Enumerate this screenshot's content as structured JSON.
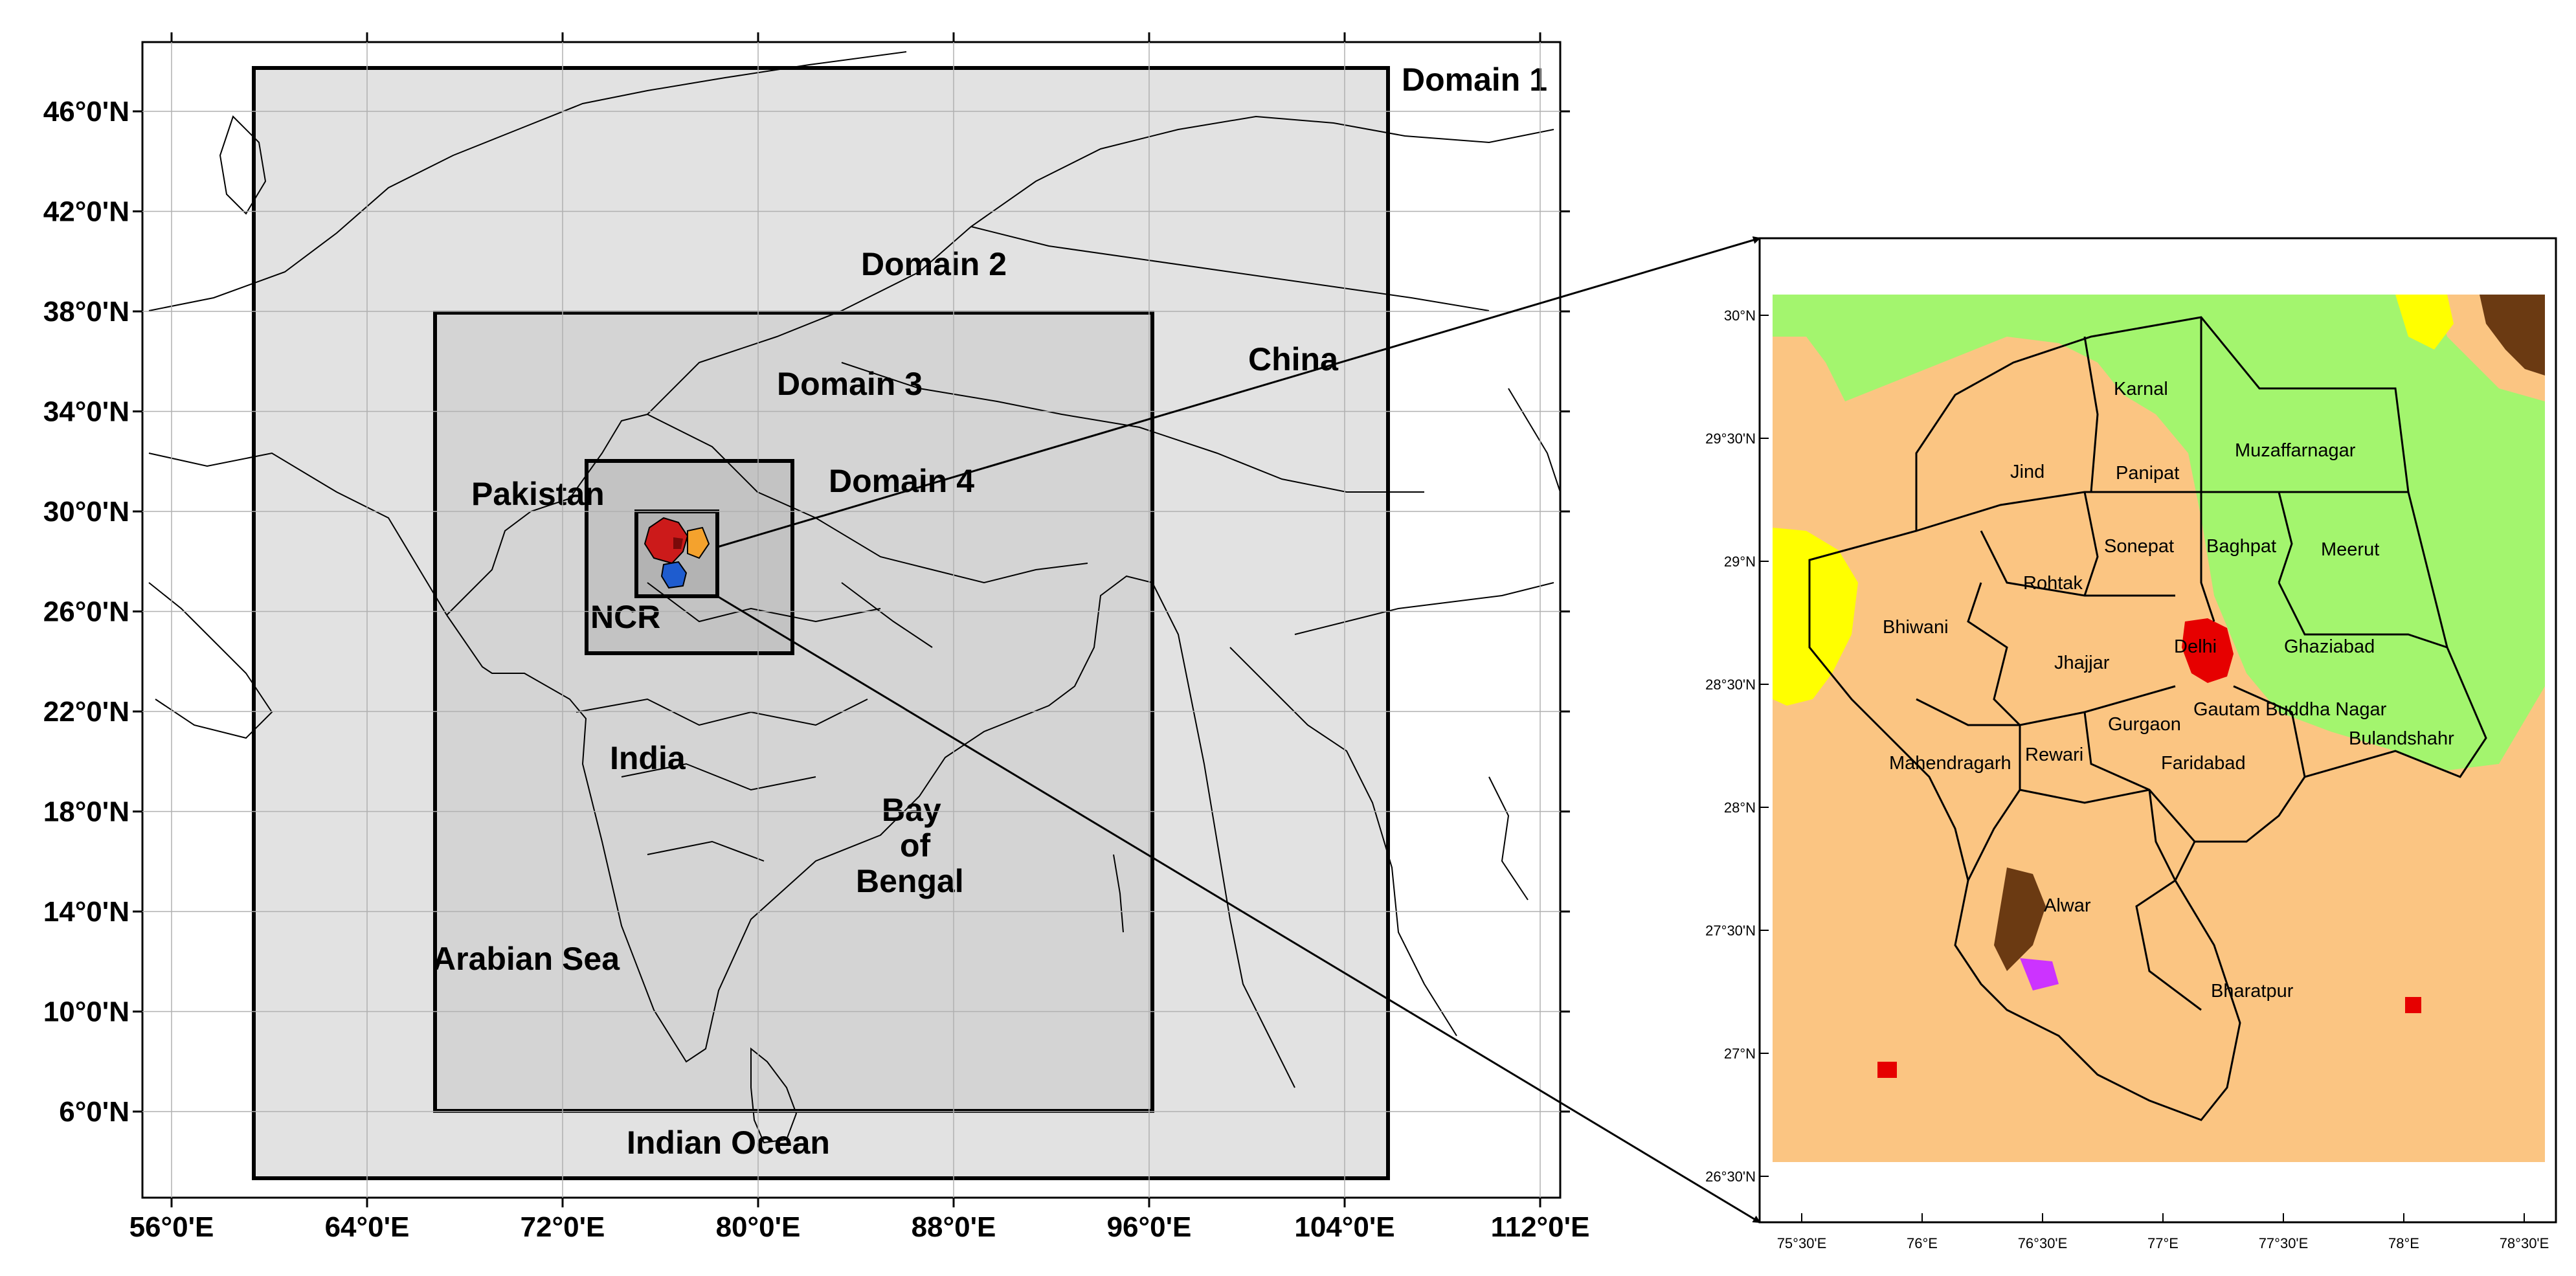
{
  "main_map": {
    "lat_ticks": [
      "46°0'N",
      "42°0'N",
      "38°0'N",
      "34°0'N",
      "30°0'N",
      "26°0'N",
      "22°0'N",
      "18°0'N",
      "14°0'N",
      "10°0'N",
      "6°0'N"
    ],
    "lon_ticks": [
      "56°0'E",
      "64°0'E",
      "72°0'E",
      "80°0'E",
      "88°0'E",
      "96°0'E",
      "104°0'E",
      "112°0'E"
    ],
    "domains": [
      {
        "label": "Domain 1",
        "fill": "#e2e2e2"
      },
      {
        "label": "Domain 2",
        "fill": "#d4d4d4"
      },
      {
        "label": "Domain 3",
        "fill": "#c3c3c3"
      },
      {
        "label": "Domain 4",
        "fill": "#b3b3b3"
      }
    ],
    "places": {
      "pakistan": "Pakistan",
      "ncr": "NCR",
      "china": "China",
      "india": "India",
      "bay1": "Bay",
      "bay2": "of",
      "bay3": "Bengal",
      "arabian": "Arabian Sea",
      "indian_ocean": "Indian Ocean"
    }
  },
  "inset_map": {
    "lat_ticks": [
      "30°N",
      "29°30'N",
      "29°N",
      "28°30'N",
      "28°N",
      "27°30'N",
      "27°N",
      "26°30'N"
    ],
    "lon_ticks": [
      "75°30'E",
      "76°E",
      "76°30'E",
      "77°E",
      "77°30'E",
      "78°E",
      "78°30'E"
    ],
    "colors": {
      "urban": "#e60000",
      "cropland": "#fbc582",
      "grass": "#a3f56e",
      "shrub": "#ffff00",
      "water": "#1aa6e6",
      "barren": "#6b3a12",
      "wetland": "#cc33ff"
    },
    "districts": [
      "Karnal",
      "Jind",
      "Panipat",
      "Muzaffarnagar",
      "Sonepat",
      "Baghpat",
      "Meerut",
      "Rohtak",
      "Bhiwani",
      "Jhajjar",
      "Delhi",
      "Ghaziabad",
      "Gautam Buddha Nagar",
      "Gurgaon",
      "Rewari",
      "Mahendragarh",
      "Faridabad",
      "Bulandshahr",
      "Alwar",
      "Bharatpur"
    ]
  }
}
